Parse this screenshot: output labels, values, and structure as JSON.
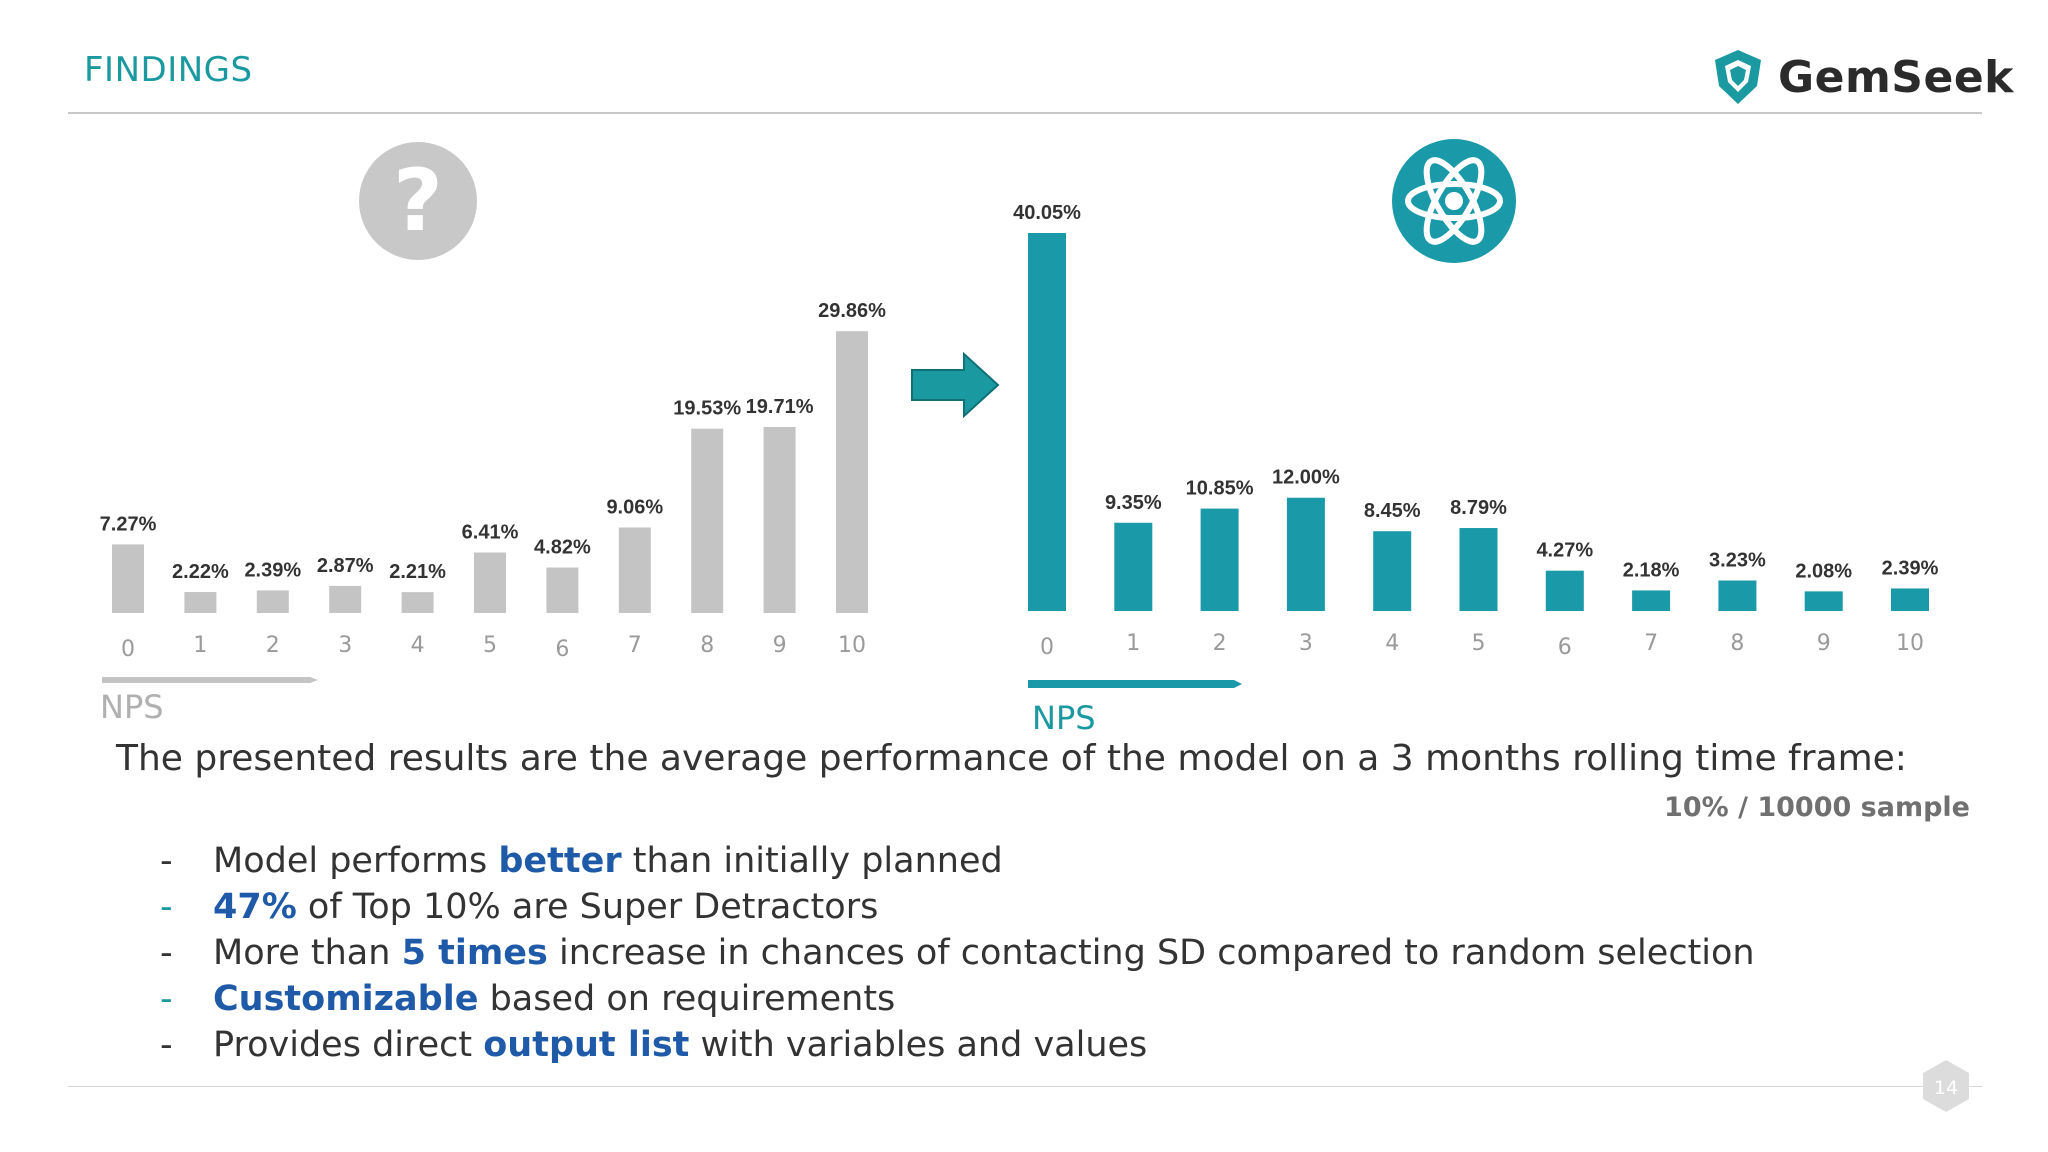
{
  "header": {
    "title": "FINDINGS",
    "logo_text": "GemSeek"
  },
  "chart_data": [
    {
      "type": "bar",
      "categories": [
        "0",
        "1",
        "2",
        "3",
        "4",
        "5",
        "6",
        "7",
        "8",
        "9",
        "10"
      ],
      "values": [
        7.27,
        2.22,
        2.39,
        2.87,
        2.21,
        6.41,
        4.82,
        9.06,
        19.53,
        19.71,
        29.86
      ],
      "value_labels": [
        "7.27%",
        "2.22%",
        "2.39%",
        "2.87%",
        "2.21%",
        "6.41%",
        "4.82%",
        "9.06%",
        "19.53%",
        "19.71%",
        "29.86%"
      ],
      "xlabel": "NPS",
      "ylim": [
        0,
        40.05
      ],
      "color": "#c4c4c4",
      "icon": "question-icon"
    },
    {
      "type": "bar",
      "categories": [
        "0",
        "1",
        "2",
        "3",
        "4",
        "5",
        "6",
        "7",
        "8",
        "9",
        "10"
      ],
      "values": [
        40.05,
        9.35,
        10.85,
        12.0,
        8.45,
        8.79,
        4.27,
        2.18,
        3.23,
        2.08,
        2.39
      ],
      "value_labels": [
        "40.05%",
        "9.35%",
        "10.85%",
        "12.00%",
        "8.45%",
        "8.79%",
        "4.27%",
        "2.18%",
        "3.23%",
        "2.08%",
        "2.39%"
      ],
      "xlabel": "NPS",
      "ylim": [
        0,
        40.05
      ],
      "color": "#1a9aa8",
      "icon": "atom-icon"
    }
  ],
  "caption": "The presented results are the average performance of the model on a 3 months rolling time frame:",
  "sample_note": "10% / 10000 sample",
  "bullets": [
    {
      "dash": "-",
      "before": "Model performs ",
      "bold": "better",
      "after": " than initially planned"
    },
    {
      "dash": "-",
      "before": "",
      "bold": "47%",
      "after": " of Top 10% are Super Detractors"
    },
    {
      "dash": "-",
      "before": "More than ",
      "bold": "5 times",
      "after": " increase in chances of contacting SD compared to random selection"
    },
    {
      "dash": "-",
      "before": "",
      "bold": "Customizable",
      "after": " based on requirements"
    },
    {
      "dash": "-",
      "before": "Provides direct ",
      "bold": "output list",
      "after": " with variables and values"
    }
  ],
  "page_number": "14",
  "colors": {
    "accent": "#1a9aa0",
    "grey_bar": "#c4c4c4",
    "teal_bar": "#1a9aa8",
    "bold_text": "#1f5aa8"
  }
}
